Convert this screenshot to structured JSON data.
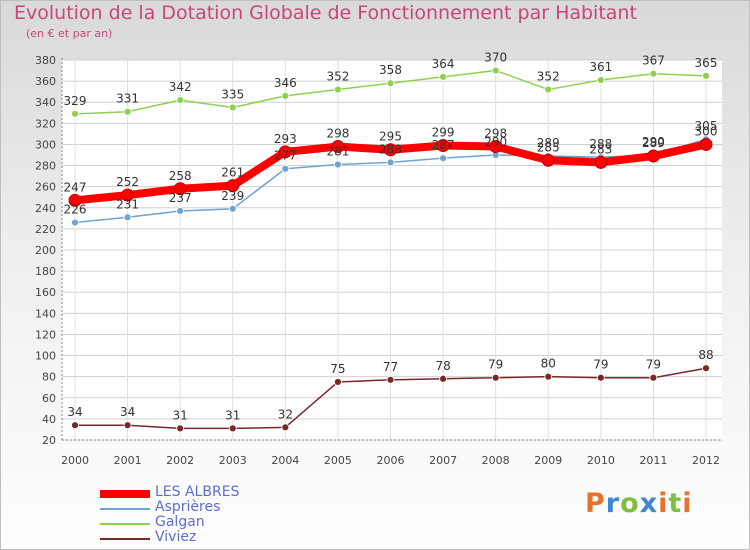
{
  "chart_data": {
    "type": "line",
    "title": "Evolution de la Dotation Globale de Fonctionnement par Habitant",
    "subtitle": "(en € et par an)",
    "xlabel": "",
    "ylabel": "",
    "ylim": [
      20,
      380
    ],
    "yticks": [
      20,
      40,
      60,
      80,
      100,
      120,
      140,
      160,
      180,
      200,
      220,
      240,
      260,
      280,
      300,
      320,
      340,
      360,
      380
    ],
    "categories": [
      "2000",
      "2001",
      "2002",
      "2003",
      "2004",
      "2005",
      "2006",
      "2007",
      "2008",
      "2009",
      "2010",
      "2011",
      "2012"
    ],
    "grid": true,
    "legend_position": "bottom-left",
    "series": [
      {
        "name": "LES ALBRES",
        "color": "#ff0000",
        "values": [
          247,
          252,
          258,
          261,
          293,
          298,
          295,
          299,
          298,
          285,
          283,
          289,
          300
        ]
      },
      {
        "name": "Asprières",
        "color": "#6fa3d2",
        "values": [
          226,
          231,
          237,
          239,
          277,
          281,
          283,
          287,
          290,
          289,
          288,
          290,
          305
        ]
      },
      {
        "name": "Galgan",
        "color": "#8ed14f",
        "values": [
          329,
          331,
          342,
          335,
          346,
          352,
          358,
          364,
          370,
          352,
          361,
          367,
          365
        ]
      },
      {
        "name": "Viviez",
        "color": "#7a2727",
        "values": [
          34,
          34,
          31,
          31,
          32,
          75,
          77,
          78,
          79,
          80,
          79,
          79,
          88
        ]
      }
    ]
  },
  "logo": {
    "text": "Proxiti",
    "colors": [
      "#e8712b",
      "#3f87d4",
      "#7cc043",
      "#3f87d4",
      "#e8712b",
      "#7cc043",
      "#e8712b"
    ]
  }
}
